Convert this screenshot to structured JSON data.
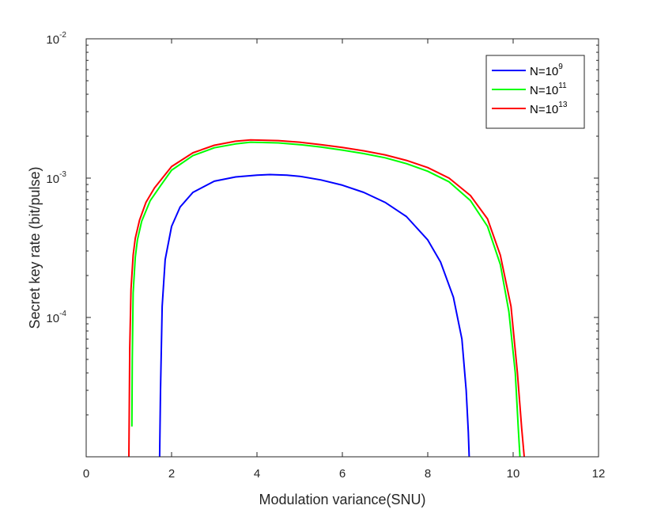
{
  "chart_data": {
    "type": "line",
    "xlabel": "Modulation variance(SNU)",
    "ylabel": "Secret key rate (bit/pulse)",
    "xlim": [
      0,
      12
    ],
    "ylim": [
      1e-05,
      0.01
    ],
    "yscale": "log",
    "x_ticks": [
      "0",
      "2",
      "4",
      "6",
      "8",
      "10",
      "12"
    ],
    "y_ticks": [
      {
        "value": 0.0001,
        "base": "10",
        "exp": "-4"
      },
      {
        "value": 0.001,
        "base": "10",
        "exp": "-3"
      },
      {
        "value": 0.01,
        "base": "10",
        "exp": "-2"
      }
    ],
    "grid": false,
    "legend_position": "top-right",
    "series": [
      {
        "name_base": "N=10",
        "name_exp": "9",
        "color": "#0000ff",
        "x": [
          1.72,
          1.74,
          1.78,
          1.85,
          2.0,
          2.2,
          2.5,
          3.0,
          3.5,
          4.0,
          4.3,
          4.7,
          5.0,
          5.5,
          6.0,
          6.5,
          7.0,
          7.5,
          8.0,
          8.3,
          8.6,
          8.8,
          8.9,
          8.95,
          8.97
        ],
        "y": [
          1e-05,
          3e-05,
          0.00012,
          0.00026,
          0.00045,
          0.00062,
          0.00079,
          0.00095,
          0.00102,
          0.00105,
          0.00106,
          0.00105,
          0.00103,
          0.00097,
          0.00089,
          0.00079,
          0.00067,
          0.00053,
          0.00036,
          0.00025,
          0.00014,
          7e-05,
          3e-05,
          1.5e-05,
          1e-05
        ]
      },
      {
        "name_base": "N=10",
        "name_exp": "11",
        "color": "#00ff00",
        "x": [
          1.07,
          1.08,
          1.1,
          1.15,
          1.2,
          1.3,
          1.5,
          1.75,
          2.0,
          2.5,
          3.0,
          3.5,
          3.85,
          4.5,
          5.0,
          5.5,
          6.0,
          6.5,
          7.0,
          7.5,
          8.0,
          8.5,
          9.0,
          9.4,
          9.7,
          9.9,
          10.05,
          10.12,
          10.16
        ],
        "y": [
          1.65e-05,
          5e-05,
          0.00015,
          0.00027,
          0.00036,
          0.00049,
          0.00069,
          0.00089,
          0.00114,
          0.00145,
          0.00165,
          0.00176,
          0.00181,
          0.00179,
          0.00174,
          0.00167,
          0.00159,
          0.0015,
          0.0014,
          0.00127,
          0.00112,
          0.00094,
          0.00069,
          0.00045,
          0.00024,
          0.00011,
          4e-05,
          1.6e-05,
          1e-05
        ]
      },
      {
        "name_base": "N=10",
        "name_exp": "13",
        "color": "#ff0000",
        "x": [
          1.0,
          1.02,
          1.05,
          1.1,
          1.15,
          1.25,
          1.4,
          1.6,
          2.0,
          2.5,
          3.0,
          3.5,
          3.85,
          4.5,
          5.0,
          5.5,
          6.0,
          6.5,
          7.0,
          7.5,
          8.0,
          8.5,
          9.0,
          9.4,
          9.7,
          9.95,
          10.1,
          10.2,
          10.26
        ],
        "y": [
          1e-05,
          6e-05,
          0.00016,
          0.00028,
          0.00037,
          0.0005,
          0.00067,
          0.00085,
          0.00121,
          0.00152,
          0.00172,
          0.00184,
          0.00188,
          0.00186,
          0.00181,
          0.00174,
          0.00166,
          0.00157,
          0.00147,
          0.00134,
          0.00119,
          0.001,
          0.00075,
          0.00051,
          0.00028,
          0.00012,
          4e-05,
          1.6e-05,
          1e-05
        ]
      }
    ]
  }
}
